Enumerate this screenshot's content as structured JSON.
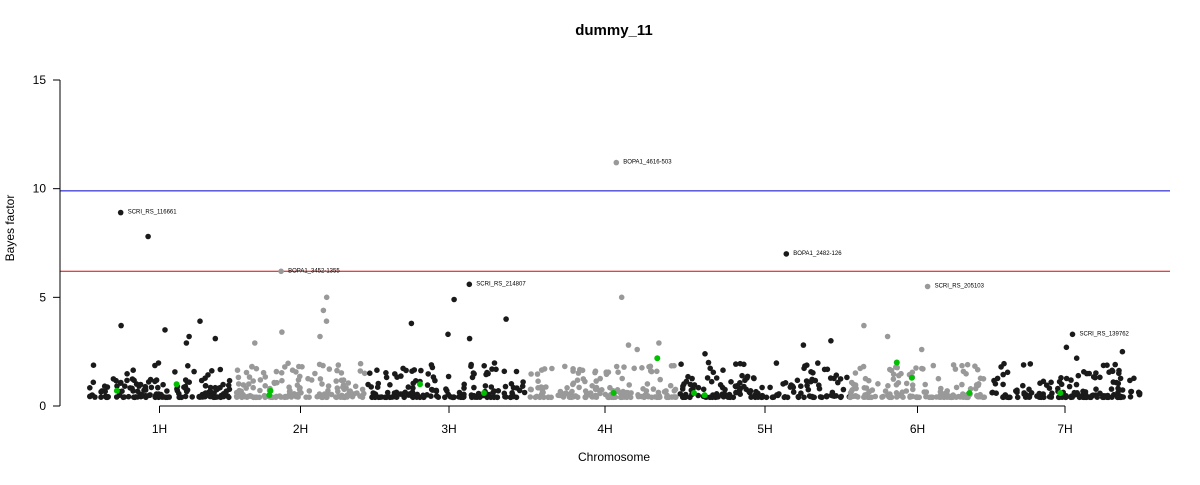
{
  "chart_data": {
    "type": "scatter",
    "title": "dummy_11",
    "xlabel": "Chromosome",
    "ylabel": "Bayes factor",
    "ylim": [
      0,
      15
    ],
    "yticks": [
      0,
      5,
      10,
      15
    ],
    "grid": false,
    "chromosomes": [
      "1H",
      "2H",
      "3H",
      "4H",
      "5H",
      "6H",
      "7H"
    ],
    "chromosome_colors": [
      "#1a1a1a",
      "#999999",
      "#1a1a1a",
      "#999999",
      "#1a1a1a",
      "#999999",
      "#1a1a1a"
    ],
    "highlight_color": "#00c000",
    "thresholds": [
      {
        "value": 9.9,
        "color": "#0000cc"
      },
      {
        "value": 6.2,
        "color": "#e60000"
      }
    ],
    "labeled_points": [
      {
        "label": "SCRI_RS_116661",
        "chromosome": "1H",
        "y": 8.9
      },
      {
        "label": "BOPA1_3452-1355",
        "chromosome": "2H",
        "y": 6.2
      },
      {
        "label": "SCRI_RS_214807",
        "chromosome": "3H",
        "y": 5.6
      },
      {
        "label": "BOPA1_4616-503",
        "chromosome": "4H",
        "y": 11.2
      },
      {
        "label": "BOPA1_2482-126",
        "chromosome": "5H",
        "y": 7.0
      },
      {
        "label": "SCRI_RS_205103",
        "chromosome": "6H",
        "y": 5.5
      },
      {
        "label": "SCRI_RS_139762",
        "chromosome": "7H",
        "y": 3.3
      }
    ],
    "notable_points": [
      {
        "chromosome": "1H",
        "y": 7.8
      },
      {
        "chromosome": "1H",
        "y": 3.9
      },
      {
        "chromosome": "1H",
        "y": 3.7
      },
      {
        "chromosome": "1H",
        "y": 3.5
      },
      {
        "chromosome": "1H",
        "y": 3.2
      },
      {
        "chromosome": "1H",
        "y": 3.1
      },
      {
        "chromosome": "1H",
        "y": 2.9
      },
      {
        "chromosome": "2H",
        "y": 5.0
      },
      {
        "chromosome": "2H",
        "y": 4.4
      },
      {
        "chromosome": "2H",
        "y": 3.9
      },
      {
        "chromosome": "2H",
        "y": 3.4
      },
      {
        "chromosome": "2H",
        "y": 3.2
      },
      {
        "chromosome": "2H",
        "y": 2.9
      },
      {
        "chromosome": "3H",
        "y": 4.9
      },
      {
        "chromosome": "3H",
        "y": 4.0
      },
      {
        "chromosome": "3H",
        "y": 3.8
      },
      {
        "chromosome": "3H",
        "y": 3.3
      },
      {
        "chromosome": "3H",
        "y": 3.1
      },
      {
        "chromosome": "4H",
        "y": 5.0
      },
      {
        "chromosome": "4H",
        "y": 2.9
      },
      {
        "chromosome": "4H",
        "y": 2.8
      },
      {
        "chromosome": "4H",
        "y": 2.6
      },
      {
        "chromosome": "5H",
        "y": 3.0
      },
      {
        "chromosome": "5H",
        "y": 2.8
      },
      {
        "chromosome": "5H",
        "y": 2.4
      },
      {
        "chromosome": "6H",
        "y": 3.7
      },
      {
        "chromosome": "6H",
        "y": 3.2
      },
      {
        "chromosome": "6H",
        "y": 2.6
      },
      {
        "chromosome": "7H",
        "y": 2.7
      },
      {
        "chromosome": "7H",
        "y": 2.5
      },
      {
        "chromosome": "7H",
        "y": 2.2
      }
    ],
    "highlighted_points": [
      {
        "chromosome": "1H",
        "y": 1.0
      },
      {
        "chromosome": "1H",
        "y": 0.7
      },
      {
        "chromosome": "2H",
        "y": 0.7
      },
      {
        "chromosome": "2H",
        "y": 0.5
      },
      {
        "chromosome": "3H",
        "y": 1.0
      },
      {
        "chromosome": "3H",
        "y": 0.6
      },
      {
        "chromosome": "4H",
        "y": 2.2
      },
      {
        "chromosome": "4H",
        "y": 0.6
      },
      {
        "chromosome": "5H",
        "y": 0.6
      },
      {
        "chromosome": "5H",
        "y": 0.5
      },
      {
        "chromosome": "6H",
        "y": 2.0
      },
      {
        "chromosome": "6H",
        "y": 1.3
      },
      {
        "chromosome": "6H",
        "y": 0.6
      },
      {
        "chromosome": "7H",
        "y": 0.6
      }
    ],
    "background_points_per_chromosome": 150,
    "background_y_range": [
      0.4,
      2.0
    ]
  }
}
